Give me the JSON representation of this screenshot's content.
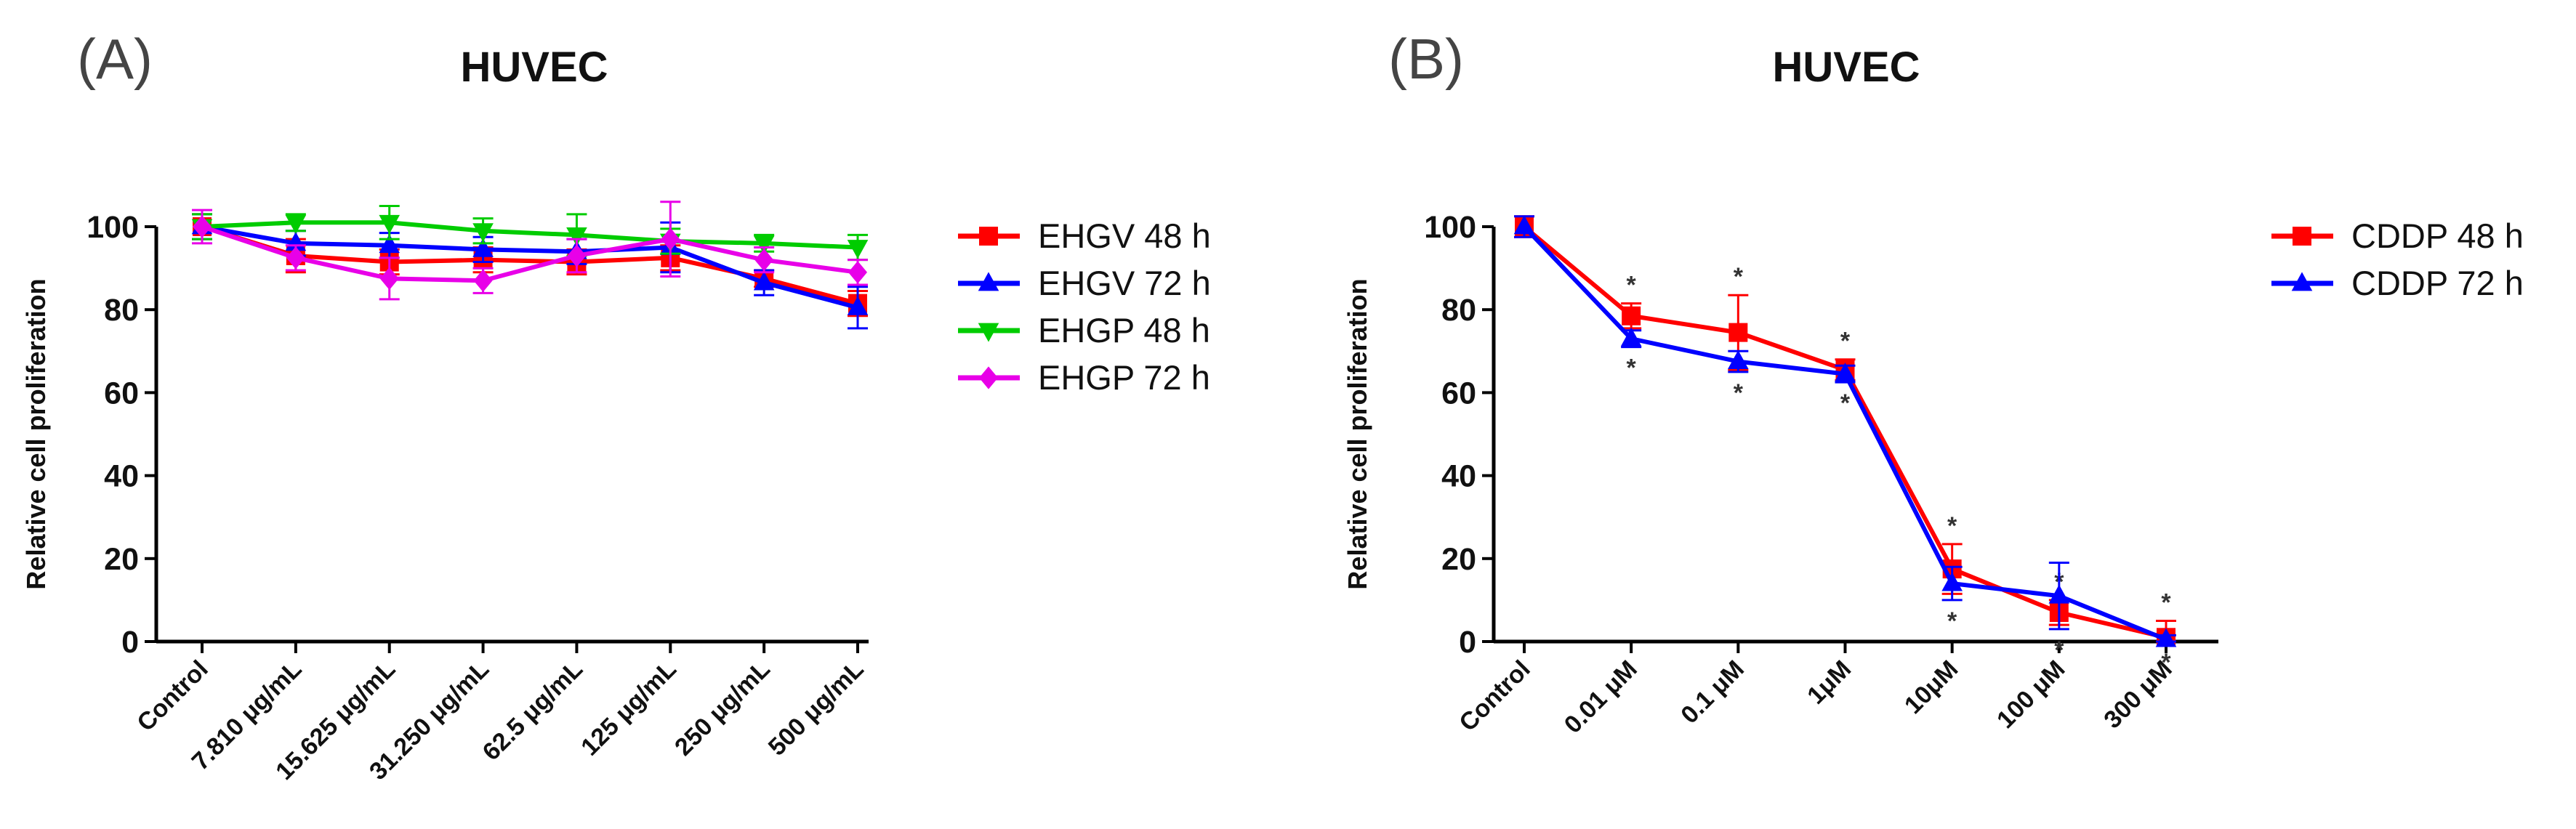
{
  "chart_data": [
    {
      "panel": "(A)",
      "type": "line",
      "title": "HUVEC",
      "ylabel": "Relative cell proliferation",
      "xlabel": "",
      "ylim": [
        0,
        100
      ],
      "yticks": [
        "0",
        "20",
        "40",
        "60",
        "80",
        "100"
      ],
      "categories": [
        "Control",
        "7.810 μg/mL",
        "15.625 μg/mL",
        "31.250 μg/mL",
        "62.5 μg/mL",
        "125 μg/mL",
        "250 μg/mL",
        "500 μg/mL"
      ],
      "series": [
        {
          "name": "EHGV 48 h",
          "color": "#ff0000",
          "marker": "square",
          "values": [
            100,
            93,
            91.5,
            92,
            91.5,
            92.5,
            87.5,
            81.5
          ],
          "errors": [
            3,
            4,
            3,
            3,
            3,
            3,
            2,
            3
          ]
        },
        {
          "name": "EHGV 72 h",
          "color": "#0000ff",
          "marker": "triangle-up",
          "values": [
            100,
            96,
            95.5,
            94.5,
            94,
            95,
            86.5,
            80.5
          ],
          "errors": [
            3,
            3,
            3,
            3,
            3,
            6,
            3,
            5
          ]
        },
        {
          "name": "EHGP 48 h",
          "color": "#00cc00",
          "marker": "triangle-down",
          "values": [
            100,
            101,
            101,
            99,
            98,
            96.5,
            96,
            95
          ],
          "errors": [
            3,
            2,
            4,
            3,
            5,
            3,
            2,
            3
          ]
        },
        {
          "name": "EHGP 72 h",
          "color": "#e800e8",
          "marker": "diamond",
          "values": [
            100,
            92.5,
            87.5,
            87,
            93,
            97,
            92,
            89
          ],
          "errors": [
            4,
            3,
            5,
            3,
            4,
            9,
            3,
            3
          ]
        }
      ]
    },
    {
      "panel": "(B)",
      "type": "line",
      "title": "HUVEC",
      "ylabel": "Relative cell proliferation",
      "xlabel": "",
      "ylim": [
        0,
        100
      ],
      "yticks": [
        "0",
        "20",
        "40",
        "60",
        "80",
        "100"
      ],
      "categories": [
        "Control",
        "0.01 μM",
        "0.1 μM",
        "1μM",
        "10μM",
        "100 μM",
        "300 μM"
      ],
      "series": [
        {
          "name": "CDDP 48 h",
          "color": "#ff0000",
          "marker": "square",
          "values": [
            100,
            78.5,
            74.5,
            65.5,
            17.5,
            7,
            1
          ],
          "errors": [
            2.5,
            3,
            9,
            2.5,
            6,
            3,
            4
          ],
          "significance": [
            "",
            "*",
            "*",
            "*",
            "*",
            "*",
            "*"
          ]
        },
        {
          "name": "CDDP 72 h",
          "color": "#0000ff",
          "marker": "triangle-up",
          "values": [
            100,
            73,
            67.5,
            64.5,
            14,
            11,
            0.5
          ],
          "errors": [
            2.5,
            2,
            2.5,
            2,
            4,
            8,
            1
          ],
          "significance": [
            "",
            "*",
            "*",
            "*",
            "*",
            "*",
            "*"
          ]
        }
      ]
    }
  ]
}
